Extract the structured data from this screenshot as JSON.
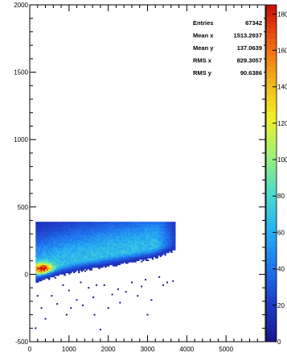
{
  "chart_data": {
    "type": "heatmap",
    "title": "",
    "xlabel": "",
    "ylabel": "",
    "xlim": [
      0,
      6000
    ],
    "ylim": [
      -500,
      2000
    ],
    "x_ticks": [
      "0",
      "1000",
      "2000",
      "3000",
      "4000",
      "5000"
    ],
    "y_ticks": [
      "-500",
      "0",
      "500",
      "1000",
      "1500",
      "2000"
    ],
    "x_tick_values": [
      0,
      1000,
      2000,
      3000,
      4000,
      5000
    ],
    "y_tick_values": [
      -500,
      0,
      500,
      1000,
      1500,
      2000
    ],
    "z_ticks": [
      "0",
      "20",
      "40",
      "60",
      "80",
      "100",
      "120",
      "140",
      "160",
      "180"
    ],
    "z_tick_values": [
      0,
      20,
      40,
      60,
      80,
      100,
      120,
      140,
      160,
      180
    ],
    "z_range": [
      0,
      185
    ],
    "colormap": [
      "#1a1a8c",
      "#1e3cc8",
      "#1e78f0",
      "#28b4f0",
      "#50dcc8",
      "#a0f078",
      "#f0f028",
      "#f0b41e",
      "#f06414",
      "#c8140a"
    ],
    "stats": {
      "rows": [
        {
          "label": "Entries",
          "value": "67342"
        },
        {
          "label": "Mean x",
          "value": "1513.2937"
        },
        {
          "label": "Mean y",
          "value": "137.0639"
        },
        {
          "label": "RMS x",
          "value": "829.3057"
        },
        {
          "label": "RMS y",
          "value": "90.6386"
        }
      ]
    },
    "density_band": {
      "x_range": [
        150,
        3700
      ],
      "y_cap": 390,
      "ridge": [
        [
          200,
          20
        ],
        [
          600,
          60
        ],
        [
          1200,
          100
        ],
        [
          2000,
          140
        ],
        [
          3000,
          190
        ],
        [
          3600,
          230
        ]
      ],
      "peak_z": 180,
      "peak_at": [
        300,
        40
      ]
    },
    "outliers": [
      [
        560,
        -160
      ],
      [
        300,
        -250
      ],
      [
        150,
        -400
      ],
      [
        940,
        -300
      ],
      [
        1350,
        -230
      ],
      [
        1620,
        -170
      ],
      [
        2000,
        -250
      ],
      [
        2250,
        -110
      ],
      [
        2850,
        -90
      ],
      [
        3000,
        -300
      ],
      [
        2600,
        -60
      ],
      [
        3650,
        -50
      ],
      [
        1700,
        -80
      ],
      [
        2450,
        -130
      ],
      [
        1000,
        -120
      ],
      [
        3300,
        -20
      ],
      [
        1200,
        -190
      ],
      [
        1900,
        -80
      ],
      [
        3100,
        -190
      ],
      [
        3400,
        -80
      ],
      [
        700,
        -220
      ],
      [
        1500,
        -100
      ],
      [
        2750,
        -160
      ],
      [
        1800,
        -410
      ],
      [
        400,
        -330
      ],
      [
        200,
        -160
      ],
      [
        2100,
        -150
      ],
      [
        850,
        -80
      ],
      [
        3500,
        -60
      ],
      [
        2300,
        -210
      ],
      [
        1300,
        -60
      ],
      [
        2950,
        -40
      ],
      [
        1050,
        -250
      ],
      [
        500,
        -30
      ],
      [
        1650,
        -300
      ]
    ]
  }
}
